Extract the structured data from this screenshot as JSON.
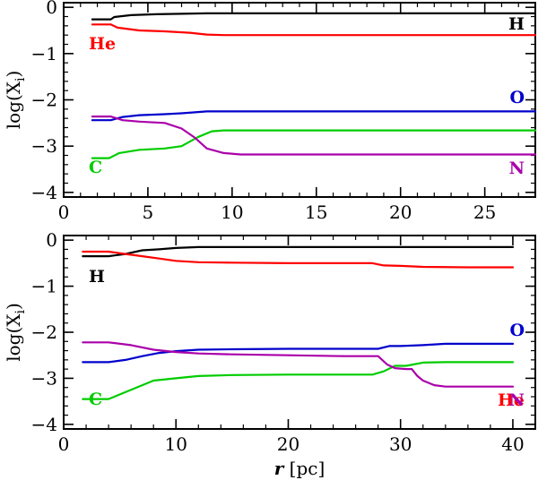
{
  "chart_data": [
    {
      "type": "line",
      "panel": "top",
      "title": "",
      "xlabel": "",
      "ylabel": "log(X_i)",
      "ylabel_main": "log(X",
      "ylabel_sub": "i",
      "ylabel_close": ")",
      "xlim": [
        0,
        28
      ],
      "ylim": [
        -4.1,
        0.1
      ],
      "xticks": [
        0,
        5,
        10,
        15,
        20,
        25
      ],
      "yticks": [
        0,
        -1,
        -2,
        -3,
        -4
      ],
      "xtick_labels": [
        "0",
        "5",
        "10",
        "15",
        "20",
        "25"
      ],
      "ytick_labels": [
        "0",
        "−1",
        "−2",
        "−3",
        "−4"
      ],
      "grid": false,
      "series": [
        {
          "name": "H",
          "color": "#000000",
          "label_pos": "upper-right",
          "x": [
            1.7,
            2.8,
            3.0,
            4.0,
            5.5,
            7.0,
            8.5,
            9.5,
            28
          ],
          "y": [
            -0.26,
            -0.26,
            -0.21,
            -0.17,
            -0.15,
            -0.14,
            -0.13,
            -0.13,
            -0.13
          ]
        },
        {
          "name": "He",
          "color": "#ff0000",
          "label_pos": "upper-left",
          "x": [
            1.7,
            2.8,
            3.2,
            4.5,
            6.0,
            7.5,
            8.5,
            9.5,
            28
          ],
          "y": [
            -0.37,
            -0.37,
            -0.44,
            -0.5,
            -0.52,
            -0.55,
            -0.59,
            -0.6,
            -0.6
          ]
        },
        {
          "name": "O",
          "color": "#0000cc",
          "label_pos": "right",
          "x": [
            1.7,
            2.8,
            3.5,
            4.5,
            6.0,
            7.0,
            8.5,
            9.5,
            28
          ],
          "y": [
            -2.44,
            -2.44,
            -2.37,
            -2.33,
            -2.31,
            -2.29,
            -2.25,
            -2.25,
            -2.25
          ]
        },
        {
          "name": "C",
          "color": "#00cc00",
          "label_pos": "lower-left",
          "x": [
            1.7,
            2.7,
            3.3,
            4.5,
            6.0,
            7.0,
            8.0,
            8.8,
            9.5,
            28
          ],
          "y": [
            -3.26,
            -3.26,
            -3.15,
            -3.08,
            -3.05,
            -3.0,
            -2.8,
            -2.68,
            -2.66,
            -2.66
          ]
        },
        {
          "name": "N",
          "color": "#aa00aa",
          "label_pos": "lower-right",
          "x": [
            1.7,
            2.8,
            3.5,
            4.5,
            6.0,
            7.0,
            7.8,
            8.5,
            9.5,
            10.5,
            28
          ],
          "y": [
            -2.36,
            -2.36,
            -2.44,
            -2.47,
            -2.5,
            -2.62,
            -2.82,
            -3.05,
            -3.15,
            -3.18,
            -3.18
          ]
        }
      ]
    },
    {
      "type": "line",
      "panel": "bottom",
      "title": "",
      "xlabel": "r [pc]",
      "xlabel_main": "r",
      "xlabel_unit": " [pc]",
      "ylabel": "log(X_i)",
      "ylabel_main": "log(X",
      "ylabel_sub": "i",
      "ylabel_close": ")",
      "xlim": [
        0,
        42
      ],
      "ylim": [
        -4.1,
        0.1
      ],
      "xticks": [
        0,
        10,
        20,
        30,
        40
      ],
      "yticks": [
        0,
        -1,
        -2,
        -3,
        -4
      ],
      "xtick_labels": [
        "0",
        "10",
        "20",
        "30",
        "40"
      ],
      "ytick_labels": [
        "0",
        "−1",
        "−2",
        "−3",
        "−4"
      ],
      "grid": false,
      "series": [
        {
          "name": "H",
          "color": "#000000",
          "label_pos": "upper-left",
          "x": [
            1.7,
            4.0,
            5.5,
            7.0,
            8.5,
            10.0,
            12.0,
            15.0,
            20.0,
            25.0,
            28.0,
            32.0,
            36.0,
            40.0
          ],
          "y": [
            -0.35,
            -0.35,
            -0.3,
            -0.22,
            -0.2,
            -0.17,
            -0.15,
            -0.15,
            -0.15,
            -0.15,
            -0.15,
            -0.15,
            -0.15,
            -0.15
          ]
        },
        {
          "name": "He",
          "color": "#ff0000",
          "label_pos": "lower-right",
          "x": [
            1.7,
            4.0,
            5.5,
            7.0,
            8.5,
            10.0,
            12.0,
            15.0,
            20.0,
            25.0,
            27.5,
            28.5,
            30.0,
            32.0,
            36.0,
            40.0
          ],
          "y": [
            -0.25,
            -0.25,
            -0.3,
            -0.35,
            -0.4,
            -0.45,
            -0.48,
            -0.49,
            -0.5,
            -0.5,
            -0.5,
            -0.55,
            -0.56,
            -0.58,
            -0.59,
            -0.59
          ]
        },
        {
          "name": "O",
          "color": "#0000cc",
          "label_pos": "right",
          "x": [
            1.7,
            4.0,
            5.5,
            7.0,
            8.5,
            10.0,
            12.0,
            15.0,
            20.0,
            25.0,
            28.0,
            29.0,
            30.0,
            32.0,
            34.0,
            40.0
          ],
          "y": [
            -2.65,
            -2.65,
            -2.6,
            -2.52,
            -2.45,
            -2.41,
            -2.38,
            -2.37,
            -2.36,
            -2.36,
            -2.36,
            -2.3,
            -2.3,
            -2.28,
            -2.25,
            -2.25
          ]
        },
        {
          "name": "C",
          "color": "#00cc00",
          "label_pos": "lower-left",
          "x": [
            1.7,
            4.0,
            5.5,
            7.0,
            8.0,
            10.0,
            12.0,
            15.0,
            20.0,
            25.0,
            27.5,
            28.5,
            29.5,
            30.5,
            32.0,
            34.0,
            40.0
          ],
          "y": [
            -3.45,
            -3.45,
            -3.3,
            -3.15,
            -3.05,
            -3.0,
            -2.95,
            -2.93,
            -2.92,
            -2.92,
            -2.92,
            -2.85,
            -2.73,
            -2.73,
            -2.66,
            -2.65,
            -2.65
          ]
        },
        {
          "name": "N",
          "color": "#aa00aa",
          "label_pos": "lower-right",
          "x": [
            1.7,
            4.0,
            6.0,
            8.0,
            10.0,
            12.0,
            15.0,
            20.0,
            25.0,
            28.0,
            28.8,
            29.5,
            30.5,
            31.0,
            31.5,
            32.0,
            33.0,
            34.0,
            40.0
          ],
          "y": [
            -2.22,
            -2.22,
            -2.28,
            -2.38,
            -2.43,
            -2.46,
            -2.48,
            -2.5,
            -2.52,
            -2.52,
            -2.7,
            -2.78,
            -2.8,
            -2.8,
            -2.95,
            -3.05,
            -3.15,
            -3.18,
            -3.18
          ]
        }
      ]
    }
  ]
}
